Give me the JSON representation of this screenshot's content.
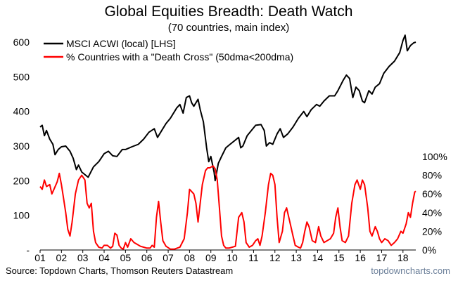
{
  "chart_data": {
    "type": "line",
    "title": "Global Equities Breadth: Death Watch",
    "subtitle": "(70 countries, main index)",
    "x_axis": {
      "range": [
        2001,
        2018.6
      ],
      "ticks": [
        {
          "label": "01",
          "value": 2001
        },
        {
          "label": "02",
          "value": 2002
        },
        {
          "label": "03",
          "value": 2003
        },
        {
          "label": "04",
          "value": 2004
        },
        {
          "label": "05",
          "value": 2005
        },
        {
          "label": "06",
          "value": 2006
        },
        {
          "label": "07",
          "value": 2007
        },
        {
          "label": "08",
          "value": 2008
        },
        {
          "label": "09",
          "value": 2009
        },
        {
          "label": "10",
          "value": 2010
        },
        {
          "label": "11",
          "value": 2011
        },
        {
          "label": "12",
          "value": 2012
        },
        {
          "label": "13",
          "value": 2013
        },
        {
          "label": "14",
          "value": 2014
        },
        {
          "label": "15",
          "value": 2015
        },
        {
          "label": "16",
          "value": 2016
        },
        {
          "label": "17",
          "value": 2017
        },
        {
          "label": "18",
          "value": 2018
        }
      ]
    },
    "y_left": {
      "range": [
        0,
        600
      ],
      "ticks": [
        {
          "label": "-",
          "value": 0
        },
        {
          "label": "100",
          "value": 100
        },
        {
          "label": "200",
          "value": 200
        },
        {
          "label": "300",
          "value": 300
        },
        {
          "label": "400",
          "value": 400
        },
        {
          "label": "500",
          "value": 500
        },
        {
          "label": "600",
          "value": 600
        }
      ]
    },
    "y_right": {
      "range": [
        0,
        100
      ],
      "ticks": [
        {
          "label": "0%",
          "value": 0
        },
        {
          "label": "20%",
          "value": 20
        },
        {
          "label": "40%",
          "value": 40
        },
        {
          "label": "60%",
          "value": 60
        },
        {
          "label": "80%",
          "value": 80
        },
        {
          "label": "100%",
          "value": 100
        }
      ]
    },
    "grid": false,
    "legend_position": "top-left",
    "series": [
      {
        "name": "MSCI ACWI (local) [LHS]",
        "axis": "left",
        "color": "#000000",
        "points": [
          [
            2001.0,
            355
          ],
          [
            2001.1,
            360
          ],
          [
            2001.2,
            330
          ],
          [
            2001.3,
            345
          ],
          [
            2001.45,
            320
          ],
          [
            2001.6,
            305
          ],
          [
            2001.7,
            275
          ],
          [
            2001.85,
            290
          ],
          [
            2002.0,
            298
          ],
          [
            2002.2,
            300
          ],
          [
            2002.4,
            285
          ],
          [
            2002.55,
            265
          ],
          [
            2002.7,
            232
          ],
          [
            2002.8,
            245
          ],
          [
            2002.95,
            225
          ],
          [
            2003.15,
            215
          ],
          [
            2003.25,
            210
          ],
          [
            2003.5,
            240
          ],
          [
            2003.75,
            255
          ],
          [
            2004.0,
            278
          ],
          [
            2004.2,
            285
          ],
          [
            2004.4,
            272
          ],
          [
            2004.6,
            270
          ],
          [
            2004.85,
            290
          ],
          [
            2005.0,
            290
          ],
          [
            2005.3,
            298
          ],
          [
            2005.6,
            305
          ],
          [
            2005.85,
            320
          ],
          [
            2006.1,
            340
          ],
          [
            2006.35,
            350
          ],
          [
            2006.5,
            325
          ],
          [
            2006.7,
            345
          ],
          [
            2006.9,
            365
          ],
          [
            2007.1,
            380
          ],
          [
            2007.4,
            410
          ],
          [
            2007.55,
            420
          ],
          [
            2007.7,
            395
          ],
          [
            2007.85,
            440
          ],
          [
            2008.0,
            445
          ],
          [
            2008.1,
            425
          ],
          [
            2008.2,
            415
          ],
          [
            2008.4,
            435
          ],
          [
            2008.5,
            405
          ],
          [
            2008.65,
            370
          ],
          [
            2008.8,
            295
          ],
          [
            2008.9,
            255
          ],
          [
            2009.0,
            270
          ],
          [
            2009.15,
            225
          ],
          [
            2009.2,
            200
          ],
          [
            2009.35,
            250
          ],
          [
            2009.5,
            270
          ],
          [
            2009.7,
            295
          ],
          [
            2009.9,
            305
          ],
          [
            2010.1,
            315
          ],
          [
            2010.3,
            325
          ],
          [
            2010.4,
            295
          ],
          [
            2010.5,
            300
          ],
          [
            2010.7,
            330
          ],
          [
            2010.9,
            345
          ],
          [
            2011.1,
            360
          ],
          [
            2011.35,
            362
          ],
          [
            2011.5,
            345
          ],
          [
            2011.6,
            300
          ],
          [
            2011.75,
            310
          ],
          [
            2011.9,
            305
          ],
          [
            2012.1,
            335
          ],
          [
            2012.25,
            350
          ],
          [
            2012.4,
            325
          ],
          [
            2012.6,
            335
          ],
          [
            2012.85,
            355
          ],
          [
            2013.1,
            380
          ],
          [
            2013.35,
            400
          ],
          [
            2013.5,
            385
          ],
          [
            2013.7,
            405
          ],
          [
            2013.95,
            420
          ],
          [
            2014.1,
            415
          ],
          [
            2014.3,
            430
          ],
          [
            2014.55,
            445
          ],
          [
            2014.8,
            445
          ],
          [
            2014.95,
            460
          ],
          [
            2015.2,
            490
          ],
          [
            2015.35,
            505
          ],
          [
            2015.5,
            495
          ],
          [
            2015.65,
            440
          ],
          [
            2015.8,
            470
          ],
          [
            2015.95,
            460
          ],
          [
            2016.1,
            430
          ],
          [
            2016.2,
            425
          ],
          [
            2016.4,
            460
          ],
          [
            2016.55,
            450
          ],
          [
            2016.7,
            470
          ],
          [
            2016.9,
            480
          ],
          [
            2017.1,
            510
          ],
          [
            2017.35,
            530
          ],
          [
            2017.6,
            545
          ],
          [
            2017.85,
            570
          ],
          [
            2018.0,
            605
          ],
          [
            2018.1,
            620
          ],
          [
            2018.2,
            575
          ],
          [
            2018.35,
            590
          ],
          [
            2018.5,
            598
          ],
          [
            2018.6,
            600
          ]
        ]
      },
      {
        "name": "% Countries with a \"Death Cross\" (50dma<200dma)",
        "axis": "right",
        "color": "#ff0000",
        "points": [
          [
            2001.0,
            68
          ],
          [
            2001.1,
            65
          ],
          [
            2001.2,
            75
          ],
          [
            2001.3,
            68
          ],
          [
            2001.45,
            70
          ],
          [
            2001.55,
            60
          ],
          [
            2001.65,
            65
          ],
          [
            2001.8,
            73
          ],
          [
            2001.9,
            82
          ],
          [
            2002.0,
            70
          ],
          [
            2002.1,
            55
          ],
          [
            2002.2,
            40
          ],
          [
            2002.3,
            22
          ],
          [
            2002.4,
            15
          ],
          [
            2002.5,
            30
          ],
          [
            2002.65,
            60
          ],
          [
            2002.8,
            75
          ],
          [
            2002.95,
            80
          ],
          [
            2003.1,
            75
          ],
          [
            2003.2,
            50
          ],
          [
            2003.3,
            45
          ],
          [
            2003.4,
            50
          ],
          [
            2003.5,
            20
          ],
          [
            2003.6,
            8
          ],
          [
            2003.75,
            3
          ],
          [
            2003.9,
            2
          ],
          [
            2004.0,
            5
          ],
          [
            2004.15,
            5
          ],
          [
            2004.3,
            2
          ],
          [
            2004.4,
            4
          ],
          [
            2004.5,
            18
          ],
          [
            2004.6,
            16
          ],
          [
            2004.7,
            5
          ],
          [
            2004.8,
            2
          ],
          [
            2004.9,
            1
          ],
          [
            2005.0,
            8
          ],
          [
            2005.1,
            3
          ],
          [
            2005.25,
            12
          ],
          [
            2005.4,
            8
          ],
          [
            2005.55,
            6
          ],
          [
            2005.7,
            4
          ],
          [
            2005.85,
            3
          ],
          [
            2006.0,
            2
          ],
          [
            2006.15,
            2
          ],
          [
            2006.25,
            5
          ],
          [
            2006.35,
            3
          ],
          [
            2006.45,
            35
          ],
          [
            2006.55,
            52
          ],
          [
            2006.65,
            30
          ],
          [
            2006.75,
            10
          ],
          [
            2006.9,
            4
          ],
          [
            2007.1,
            1
          ],
          [
            2007.3,
            1
          ],
          [
            2007.55,
            3
          ],
          [
            2007.75,
            12
          ],
          [
            2007.9,
            40
          ],
          [
            2008.0,
            65
          ],
          [
            2008.2,
            60
          ],
          [
            2008.3,
            50
          ],
          [
            2008.4,
            30
          ],
          [
            2008.6,
            70
          ],
          [
            2008.75,
            85
          ],
          [
            2008.85,
            88
          ],
          [
            2008.95,
            88
          ],
          [
            2009.1,
            90
          ],
          [
            2009.2,
            87
          ],
          [
            2009.3,
            75
          ],
          [
            2009.4,
            45
          ],
          [
            2009.5,
            15
          ],
          [
            2009.6,
            5
          ],
          [
            2009.7,
            2
          ],
          [
            2009.85,
            2
          ],
          [
            2010.0,
            3
          ],
          [
            2010.15,
            4
          ],
          [
            2010.3,
            35
          ],
          [
            2010.45,
            40
          ],
          [
            2010.55,
            30
          ],
          [
            2010.65,
            8
          ],
          [
            2010.8,
            3
          ],
          [
            2010.95,
            5
          ],
          [
            2011.1,
            10
          ],
          [
            2011.2,
            12
          ],
          [
            2011.3,
            5
          ],
          [
            2011.4,
            15
          ],
          [
            2011.55,
            40
          ],
          [
            2011.7,
            70
          ],
          [
            2011.8,
            82
          ],
          [
            2011.9,
            80
          ],
          [
            2012.0,
            70
          ],
          [
            2012.1,
            35
          ],
          [
            2012.2,
            8
          ],
          [
            2012.35,
            20
          ],
          [
            2012.45,
            40
          ],
          [
            2012.55,
            45
          ],
          [
            2012.7,
            30
          ],
          [
            2012.85,
            15
          ],
          [
            2012.95,
            5
          ],
          [
            2013.1,
            3
          ],
          [
            2013.2,
            2
          ],
          [
            2013.3,
            8
          ],
          [
            2013.4,
            20
          ],
          [
            2013.5,
            30
          ],
          [
            2013.6,
            25
          ],
          [
            2013.75,
            10
          ],
          [
            2013.9,
            8
          ],
          [
            2014.05,
            25
          ],
          [
            2014.15,
            15
          ],
          [
            2014.3,
            8
          ],
          [
            2014.45,
            10
          ],
          [
            2014.6,
            12
          ],
          [
            2014.75,
            18
          ],
          [
            2014.85,
            35
          ],
          [
            2014.95,
            45
          ],
          [
            2015.05,
            25
          ],
          [
            2015.15,
            10
          ],
          [
            2015.3,
            8
          ],
          [
            2015.45,
            15
          ],
          [
            2015.6,
            50
          ],
          [
            2015.75,
            70
          ],
          [
            2015.85,
            75
          ],
          [
            2016.0,
            65
          ],
          [
            2016.1,
            75
          ],
          [
            2016.2,
            70
          ],
          [
            2016.35,
            45
          ],
          [
            2016.45,
            20
          ],
          [
            2016.55,
            15
          ],
          [
            2016.7,
            25
          ],
          [
            2016.8,
            20
          ],
          [
            2016.9,
            12
          ],
          [
            2017.0,
            8
          ],
          [
            2017.15,
            12
          ],
          [
            2017.3,
            10
          ],
          [
            2017.45,
            5
          ],
          [
            2017.6,
            8
          ],
          [
            2017.75,
            12
          ],
          [
            2017.9,
            20
          ],
          [
            2018.0,
            18
          ],
          [
            2018.15,
            28
          ],
          [
            2018.25,
            40
          ],
          [
            2018.35,
            35
          ],
          [
            2018.45,
            50
          ],
          [
            2018.55,
            62
          ],
          [
            2018.6,
            63
          ]
        ]
      }
    ]
  },
  "footer": {
    "source": "Source: Topdown Charts, Thomson Reuters Datastream",
    "brand": "topdowncharts.com"
  },
  "colors": {
    "brand_text": "#6b7f99"
  }
}
